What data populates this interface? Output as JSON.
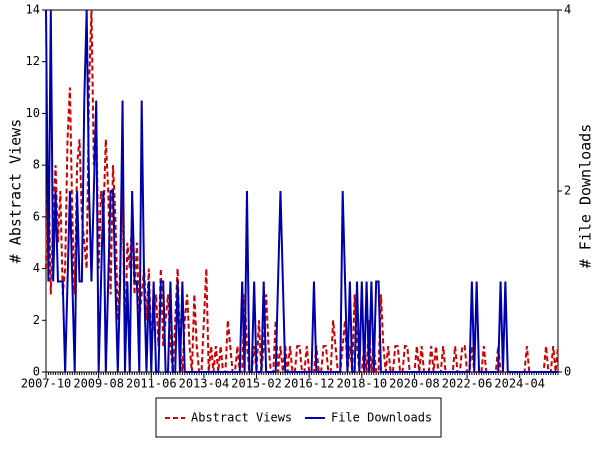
{
  "chart_data": {
    "type": "line",
    "x": [
      "2007-10",
      "2007-11",
      "2007-12",
      "2008-01",
      "2008-02",
      "2008-03",
      "2008-04",
      "2008-05",
      "2008-06",
      "2008-07",
      "2008-08",
      "2008-09",
      "2008-10",
      "2008-11",
      "2008-12",
      "2009-01",
      "2009-02",
      "2009-03",
      "2009-04",
      "2009-05",
      "2009-06",
      "2009-07",
      "2009-08",
      "2009-09",
      "2009-10",
      "2009-11",
      "2009-12",
      "2010-01",
      "2010-02",
      "2010-03",
      "2010-04",
      "2010-05",
      "2010-06",
      "2010-07",
      "2010-08",
      "2010-09",
      "2010-10",
      "2010-11",
      "2010-12",
      "2011-01",
      "2011-02",
      "2011-03",
      "2011-04",
      "2011-05",
      "2011-06",
      "2011-07",
      "2011-08",
      "2011-09",
      "2011-10",
      "2011-11",
      "2011-12",
      "2012-01",
      "2012-02",
      "2012-03",
      "2012-04",
      "2012-05",
      "2012-06",
      "2012-07",
      "2012-08",
      "2012-09",
      "2012-10",
      "2012-11",
      "2012-12",
      "2013-01",
      "2013-02",
      "2013-03",
      "2013-04",
      "2013-05",
      "2013-06",
      "2013-07",
      "2013-08",
      "2013-09",
      "2013-10",
      "2013-11",
      "2013-12",
      "2014-01",
      "2014-02",
      "2014-03",
      "2014-04",
      "2014-05",
      "2014-06",
      "2014-07",
      "2014-08",
      "2014-09",
      "2014-10",
      "2014-11",
      "2014-12",
      "2015-01",
      "2015-02",
      "2015-03",
      "2015-04",
      "2015-05",
      "2015-06",
      "2015-07",
      "2015-08",
      "2015-09",
      "2015-10",
      "2015-11",
      "2015-12",
      "2016-01",
      "2016-02",
      "2016-03",
      "2016-04",
      "2016-05",
      "2016-06",
      "2016-07",
      "2016-08",
      "2016-09",
      "2016-10",
      "2016-11",
      "2016-12",
      "2017-01",
      "2017-02",
      "2017-03",
      "2017-04",
      "2017-05",
      "2017-06",
      "2017-07",
      "2017-08",
      "2017-09",
      "2017-10",
      "2017-11",
      "2017-12",
      "2018-01",
      "2018-02",
      "2018-03",
      "2018-04",
      "2018-05",
      "2018-06",
      "2018-07",
      "2018-08",
      "2018-09",
      "2018-10",
      "2018-11",
      "2018-12",
      "2019-01",
      "2019-02",
      "2019-03",
      "2019-04",
      "2019-05",
      "2019-06",
      "2019-07",
      "2019-08",
      "2019-09",
      "2019-10",
      "2019-11",
      "2019-12",
      "2020-01",
      "2020-02",
      "2020-03",
      "2020-04",
      "2020-05",
      "2020-06",
      "2020-07",
      "2020-08",
      "2020-09",
      "2020-10",
      "2020-11",
      "2020-12",
      "2021-01",
      "2021-02",
      "2021-03",
      "2021-04",
      "2021-05",
      "2021-06",
      "2021-07",
      "2021-08",
      "2021-09",
      "2021-10",
      "2021-11",
      "2021-12",
      "2022-01",
      "2022-02",
      "2022-03",
      "2022-04",
      "2022-05",
      "2022-06",
      "2022-07",
      "2022-08",
      "2022-09",
      "2022-10",
      "2022-11",
      "2022-12",
      "2023-01",
      "2023-02",
      "2023-03",
      "2023-04",
      "2023-05",
      "2023-06",
      "2023-07",
      "2023-08",
      "2023-09",
      "2023-10",
      "2023-11",
      "2023-12",
      "2024-01",
      "2024-02",
      "2024-03",
      "2024-04",
      "2024-05",
      "2024-06",
      "2024-07",
      "2024-08",
      "2024-09",
      "2024-10",
      "2024-11",
      "2024-12",
      "2025-01",
      "2025-02",
      "2025-03",
      "2025-04",
      "2025-05",
      "2025-06",
      "2025-07",
      "2025-08"
    ],
    "xticks": [
      "2007-10",
      "2009-08",
      "2011-06",
      "2013-04",
      "2015-02",
      "2016-12",
      "2018-10",
      "2020-08",
      "2022-06",
      "2024-04"
    ],
    "ylabel": "# Abstract Views",
    "y2label": "# File Downloads",
    "ylim": [
      0,
      14
    ],
    "yticks": [
      0,
      2,
      4,
      6,
      8,
      10,
      12,
      14
    ],
    "y2lim": [
      0,
      4
    ],
    "y2ticks": [
      0,
      2,
      4
    ],
    "legend": "bottom",
    "series": [
      {
        "name": "Abstract Views",
        "color": "#cc0000",
        "dash": true,
        "values": [
          4,
          8,
          3,
          6,
          8,
          5,
          7,
          3,
          4,
          9,
          11,
          6,
          3,
          8,
          9,
          6,
          5,
          4,
          11,
          14,
          8,
          10,
          4,
          7,
          6,
          9,
          7,
          3,
          8,
          6,
          2,
          4,
          7,
          1,
          5,
          4,
          6,
          3,
          5,
          2,
          3,
          4,
          2,
          4,
          1,
          2,
          3,
          1,
          4,
          1,
          2,
          3,
          1,
          0,
          2,
          4,
          1,
          0,
          2,
          3,
          1,
          0,
          3,
          1,
          0,
          0,
          2,
          4,
          0,
          1,
          0,
          1,
          0,
          1,
          0,
          0,
          2,
          1,
          0,
          0,
          1,
          0,
          0,
          3,
          1,
          0,
          0,
          1,
          0,
          2,
          0,
          1,
          3,
          1,
          0,
          0,
          2,
          0,
          1,
          0,
          1,
          0,
          1,
          0,
          0,
          1,
          1,
          0,
          0,
          1,
          0,
          0,
          0,
          1,
          0,
          0,
          1,
          1,
          0,
          0,
          2,
          1,
          0,
          0,
          1,
          2,
          0,
          1,
          0,
          3,
          1,
          0,
          0,
          1,
          0,
          2,
          0,
          1,
          0,
          0,
          3,
          1,
          0,
          1,
          0,
          0,
          1,
          1,
          0,
          0,
          1,
          1,
          0,
          0,
          0,
          1,
          0,
          1,
          0,
          0,
          0,
          1,
          0,
          1,
          0,
          0,
          1,
          0,
          0,
          0,
          0,
          1,
          0,
          0,
          1,
          1,
          0,
          0,
          1,
          0,
          0,
          0,
          0,
          1,
          0,
          0,
          0,
          0,
          0,
          1,
          0,
          0,
          0,
          0,
          0,
          0,
          0,
          0,
          0,
          0,
          0,
          1,
          0,
          0,
          0,
          0,
          0,
          0,
          0,
          1,
          0,
          0,
          1,
          0,
          1
        ]
      },
      {
        "name": "File Downloads",
        "color": "#0000aa",
        "axis": "y2",
        "values": [
          4,
          1,
          4,
          1,
          2,
          1,
          1,
          1,
          0,
          1,
          2,
          1,
          0,
          2,
          1,
          1,
          3,
          4,
          2,
          1,
          2,
          3,
          0,
          1,
          2,
          0,
          1,
          2,
          2,
          1,
          0,
          1,
          3,
          0,
          1,
          0,
          2,
          1,
          1,
          0,
          3,
          1,
          0,
          1,
          0,
          1,
          0,
          0,
          1,
          1,
          0,
          0,
          1,
          0,
          0,
          1,
          0,
          1,
          0,
          0,
          0,
          0,
          0,
          0,
          0,
          0,
          0,
          0,
          0,
          0,
          0,
          0,
          0,
          0,
          0,
          0,
          0,
          0,
          0,
          0,
          0,
          0,
          1,
          0,
          2,
          0,
          0,
          1,
          0,
          0,
          0,
          1,
          0,
          0,
          0,
          0,
          0,
          1,
          2,
          1,
          0,
          0,
          0,
          0,
          0,
          0,
          0,
          0,
          0,
          0,
          0,
          0,
          1,
          0,
          0,
          0,
          0,
          0,
          0,
          0,
          0,
          0,
          0,
          0,
          2,
          1,
          0,
          1,
          0,
          0,
          1,
          0,
          1,
          0,
          1,
          0,
          1,
          0,
          1,
          1,
          0,
          0,
          0,
          0,
          0,
          0,
          0,
          0,
          0,
          0,
          0,
          0,
          0,
          0,
          0,
          0,
          0,
          0,
          0,
          0,
          0,
          0,
          0,
          0,
          0,
          0,
          0,
          0,
          0,
          0,
          0,
          0,
          0,
          0,
          0,
          0,
          0,
          0,
          1,
          0,
          1,
          0,
          0,
          0,
          0,
          0,
          0,
          0,
          0,
          0,
          1,
          0,
          1,
          0,
          0,
          0,
          0,
          0,
          0,
          0,
          0,
          0,
          0,
          0,
          0,
          0,
          0,
          0,
          0,
          0,
          0,
          0,
          0,
          0,
          0
        ]
      }
    ]
  }
}
